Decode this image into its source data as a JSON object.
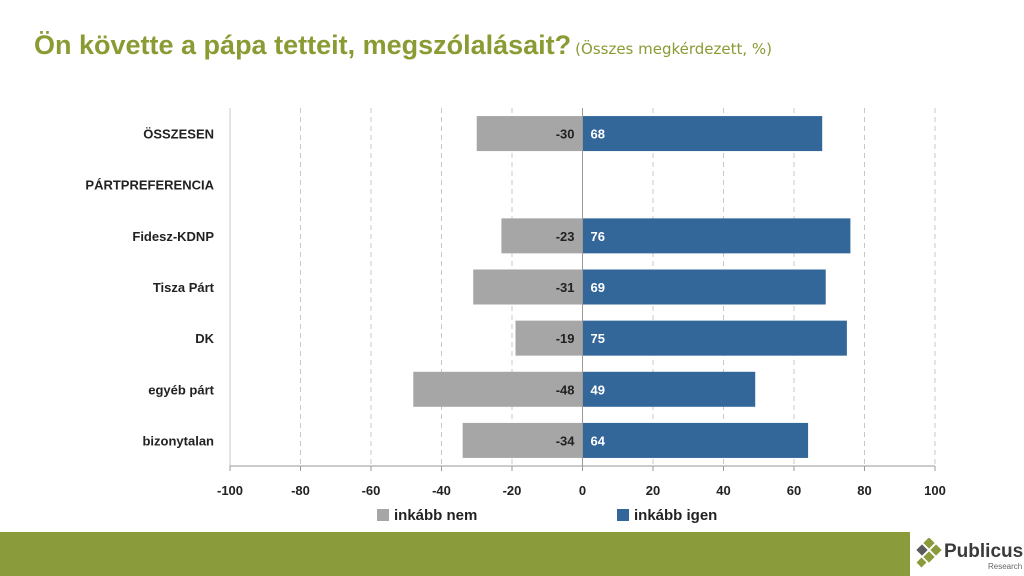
{
  "title": {
    "main": "Ön követte a pápa tetteit, megszólalásait?",
    "sub": "(Összes megkérdezett, %)"
  },
  "chart_data": {
    "type": "bar",
    "orientation": "horizontal-diverging",
    "categories": [
      "ÖSSZESEN",
      "PÁRTPREFERENCIA",
      "Fidesz-KDNP",
      "Tisza Párt",
      "DK",
      "egyéb párt",
      "bizonytalan"
    ],
    "series": [
      {
        "name": "inkább nem",
        "values": [
          -30,
          null,
          -23,
          -31,
          -19,
          -48,
          -34
        ],
        "color": "#a6a6a6"
      },
      {
        "name": "inkább igen",
        "values": [
          68,
          null,
          76,
          69,
          75,
          49,
          64
        ],
        "color": "#336699"
      }
    ],
    "xlim": [
      -100,
      100
    ],
    "xticks": [
      -100,
      -80,
      -60,
      -40,
      -20,
      0,
      20,
      40,
      60,
      80,
      100
    ],
    "grid": "vertical-dashed",
    "legend": "bottom"
  },
  "logo": {
    "name": "Publicus",
    "sub": "Research"
  },
  "colors": {
    "accent": "#8a9b34",
    "footer": "#8a9b3c",
    "neg": "#a6a6a6",
    "pos": "#336699"
  }
}
